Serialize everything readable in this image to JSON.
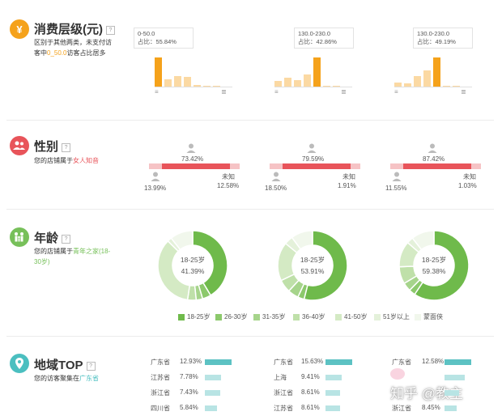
{
  "spending": {
    "title": "消费层级(元)",
    "desc_line1": "区别于其他两类，未支付访",
    "desc_pre": "客中",
    "desc_highlight": "0_50.0",
    "desc_post": "访客占比居多",
    "charts": [
      {
        "range": "0-50.0",
        "share": "占比：55.84%",
        "values": [
          100,
          25,
          35,
          33,
          5,
          3,
          2
        ]
      },
      {
        "range": "130.0-230.0",
        "share": "占比：42.86%",
        "values": [
          20,
          30,
          22,
          42,
          100,
          3,
          2
        ]
      },
      {
        "range": "130.0-230.0",
        "share": "占比：49.19%",
        "values": [
          15,
          12,
          35,
          55,
          100,
          3,
          2
        ]
      }
    ]
  },
  "gender": {
    "title": "性别",
    "desc_pre": "您的店铺属于",
    "desc_highlight": "女人知音",
    "unknown_label": "未知",
    "charts": [
      {
        "female": "73.42%",
        "male": "13.99%",
        "unknown": "12.58%",
        "female_frac": 0.7342,
        "male_frac": 0.1399
      },
      {
        "female": "79.59%",
        "male": "18.50%",
        "unknown": "1.91%",
        "female_frac": 0.7959,
        "male_frac": 0.185
      },
      {
        "female": "87.42%",
        "male": "11.55%",
        "unknown": "1.03%",
        "female_frac": 0.8742,
        "male_frac": 0.1155
      }
    ]
  },
  "age": {
    "title": "年龄",
    "desc_pre": "您的店铺属于",
    "desc_highlight": "青年之家(18-30岁)",
    "charts": [
      {
        "label": "18-25岁",
        "value": "41.39%",
        "slices": [
          41.39,
          4,
          3,
          4,
          35,
          2,
          10.61
        ]
      },
      {
        "label": "18-25岁",
        "value": "53.91%",
        "slices": [
          53.91,
          3,
          5,
          6,
          18,
          4,
          10.09
        ]
      },
      {
        "label": "18-25岁",
        "value": "59.38%",
        "slices": [
          59.38,
          3,
          4,
          8,
          12,
          3,
          10.62
        ]
      }
    ],
    "legend": [
      "18-25岁",
      "26-30岁",
      "31-35岁",
      "36-40岁",
      "41-50岁",
      "51岁以上",
      "蒙面侠"
    ],
    "colors": [
      "#6fba4b",
      "#8cc96c",
      "#a6d48b",
      "#bfe0a9",
      "#d4eac4",
      "#e4f1da",
      "#f1f7ec"
    ]
  },
  "region": {
    "title": "地域TOP",
    "desc_pre": "您的访客聚集在",
    "desc_highlight": "广东省",
    "charts": [
      {
        "rows": [
          {
            "name": "广东省",
            "value": "12.93%",
            "frac": 1.0
          },
          {
            "name": "江苏省",
            "value": "7.78%",
            "frac": 0.6
          },
          {
            "name": "浙江省",
            "value": "7.43%",
            "frac": 0.57
          },
          {
            "name": "四川省",
            "value": "5.84%",
            "frac": 0.45
          }
        ]
      },
      {
        "rows": [
          {
            "name": "广东省",
            "value": "15.63%",
            "frac": 1.0
          },
          {
            "name": "上海",
            "value": "9.41%",
            "frac": 0.6
          },
          {
            "name": "浙江省",
            "value": "8.61%",
            "frac": 0.55
          },
          {
            "name": "江苏省",
            "value": "8.61%",
            "frac": 0.55
          }
        ]
      },
      {
        "rows": [
          {
            "name": "广东省",
            "value": "12.58%",
            "frac": 1.0
          },
          {
            "name": "",
            "value": "",
            "frac": 0.75
          },
          {
            "name": "",
            "value": "",
            "frac": 0.55
          },
          {
            "name": "浙江省",
            "value": "8.45%",
            "frac": 0.45
          }
        ]
      }
    ]
  },
  "watermark": "知乎 @教主"
}
